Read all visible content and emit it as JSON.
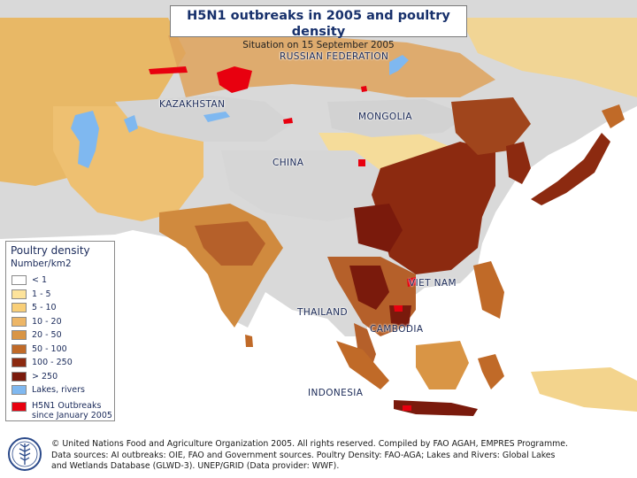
{
  "title": {
    "main": "H5N1 outbreaks in 2005 and poultry density",
    "sub": "Situation on 15 September 2005"
  },
  "countries": {
    "russia": "RUSSIAN FEDERATION",
    "kazakhstan": "KAZAKHSTAN",
    "mongolia": "MONGOLIA",
    "china": "CHINA",
    "vietnam": "VIET NAM",
    "thailand": "THAILAND",
    "cambodia": "CAMBODIA",
    "indonesia": "INDONESIA"
  },
  "legend": {
    "title": "Poultry density",
    "units": "Number/km2",
    "classes": [
      {
        "label": "< 1",
        "color": "#ffffff"
      },
      {
        "label": "1 - 5",
        "color": "#fde39b"
      },
      {
        "label": "5 - 10",
        "color": "#f9cf78"
      },
      {
        "label": "10 - 20",
        "color": "#edb667"
      },
      {
        "label": "20 - 50",
        "color": "#d99545"
      },
      {
        "label": "50 - 100",
        "color": "#c06a28"
      },
      {
        "label": "100 - 250",
        "color": "#8c2a10"
      },
      {
        "label": "> 250",
        "color": "#7a1a0c"
      }
    ],
    "lakes": {
      "label": "Lakes, rivers",
      "color": "#7fb8f0"
    },
    "outbreaks": {
      "label_line1": "H5N1 Outbreaks",
      "label_line2": "since January 2005",
      "color": "#e8000f"
    }
  },
  "colors": {
    "land_low": "#d8d8d8",
    "sea": "#ffffff"
  },
  "footer": {
    "line1": "© United Nations Food and Agriculture Organization 2005. All rights reserved. Compiled by FAO AGAH, EMPRES Programme.",
    "line2": "Data sources: AI outbreaks: OIE, FAO and Government sources. Poultry Density: FAO-AGA; Lakes and Rivers: Global Lakes",
    "line3": "and Wetlands Database (GLWD-3). UNEP/GRID (Data provider: WWF).",
    "logo_icon": "fao-logo-icon"
  }
}
